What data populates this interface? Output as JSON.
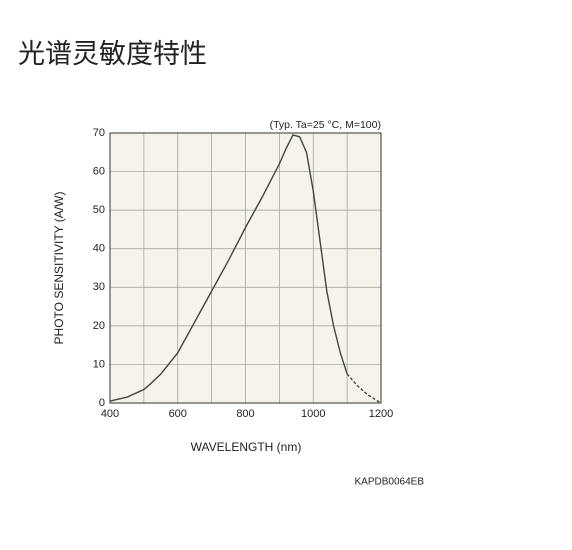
{
  "title": "光谱灵敏度特性",
  "chart_data": {
    "type": "line",
    "annotation": "(Typ. Ta=25 °C, M=100)",
    "x_label": "WAVELENGTH (nm)",
    "y_label": "PHOTO SENSITIVITY (A/W)",
    "code": "KAPDB0064EB",
    "xlim": [
      400,
      1200
    ],
    "xticks": [
      400,
      600,
      800,
      1000,
      1200
    ],
    "x_minor_ticks": [
      500,
      700,
      900,
      1100
    ],
    "ylim": [
      0,
      70
    ],
    "yticks": [
      0,
      10,
      20,
      30,
      40,
      50,
      60,
      70
    ],
    "grid": true,
    "background": "#f6f4ea",
    "series": [
      {
        "color": "#444",
        "dash": false,
        "x": [
          400,
          450,
          500,
          520,
          550,
          600,
          650,
          700,
          750,
          800,
          850,
          900,
          920,
          940,
          960,
          980,
          1000,
          1020,
          1040,
          1060,
          1080,
          1100
        ],
        "values": [
          0.5,
          1.5,
          3.5,
          5,
          7.5,
          13,
          21,
          29,
          37,
          45.5,
          53.5,
          62,
          66,
          69.5,
          69,
          65,
          55,
          42,
          29,
          20,
          13,
          7.5
        ]
      },
      {
        "color": "#444",
        "dash": true,
        "x": [
          1100,
          1130,
          1160,
          1185,
          1200
        ],
        "values": [
          7.5,
          4.5,
          2.2,
          0.8,
          0
        ]
      }
    ]
  }
}
